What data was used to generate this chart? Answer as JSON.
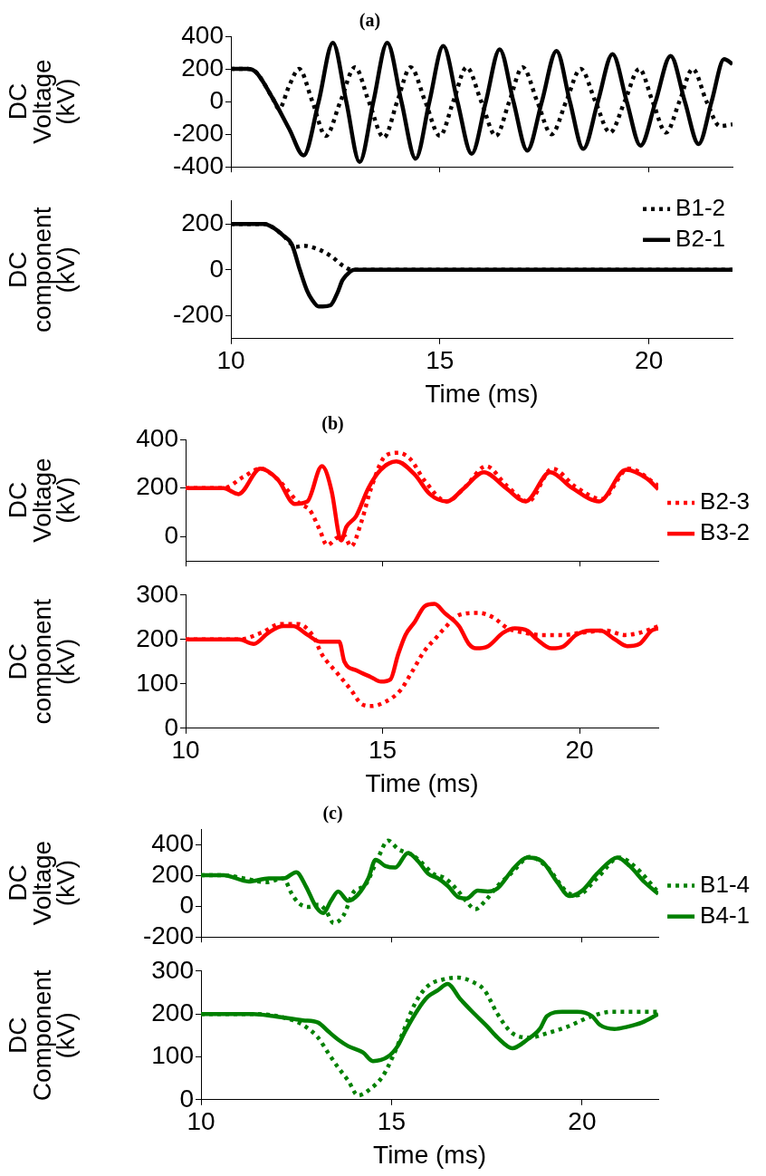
{
  "chart_data": [
    {
      "type": "line",
      "title": "(a)",
      "ylabel": "DC Voltage (kV)",
      "xlim": [
        10,
        22
      ],
      "xticks": [
        10,
        15,
        20
      ],
      "ylim": [
        -400,
        400
      ],
      "yticks": [
        -400,
        -200,
        0,
        200,
        400
      ],
      "tick_labels": "y",
      "marker": "none",
      "series": [
        {
          "color": "#000000",
          "line_style": "dotted",
          "x": [
            10,
            10.4,
            10.6,
            11,
            11.15,
            11.4,
            11.63,
            11.95,
            12.27,
            12.62,
            12.97,
            13.3,
            13.66,
            13.98,
            14.3,
            14.65,
            15.0,
            15.32,
            15.64,
            15.99,
            16.34,
            16.66,
            16.98,
            17.33,
            17.67,
            18.02,
            18.37,
            18.72,
            19.07,
            19.42,
            19.77,
            20.09,
            20.41,
            20.73,
            21.05,
            21.38,
            21.7,
            22
          ],
          "values": [
            200,
            200,
            180,
            20,
            -45,
            100,
            200,
            0,
            -210,
            0,
            210,
            0,
            -220,
            0,
            210,
            0,
            -210,
            0,
            210,
            0,
            -210,
            0,
            210,
            0,
            -200,
            0,
            200,
            0,
            -190,
            0,
            200,
            0,
            -190,
            0,
            200,
            0,
            -150,
            -140
          ]
        },
        {
          "color": "#000000",
          "line_style": "solid",
          "x": [
            10,
            10.4,
            10.6,
            11,
            11.4,
            11.74,
            12.1,
            12.44,
            12.76,
            13.08,
            13.41,
            13.74,
            14.08,
            14.42,
            14.75,
            15.08,
            15.42,
            15.76,
            16.1,
            16.43,
            16.76,
            17.09,
            17.44,
            17.79,
            18.11,
            18.43,
            18.78,
            19.13,
            19.47,
            19.8,
            20.16,
            20.52,
            20.86,
            21.19,
            21.5,
            21.8,
            22
          ],
          "values": [
            200,
            200,
            180,
            20,
            -170,
            -330,
            0,
            360,
            0,
            -370,
            0,
            360,
            0,
            -350,
            0,
            340,
            0,
            -320,
            0,
            320,
            0,
            -300,
            0,
            310,
            0,
            -290,
            0,
            290,
            0,
            -270,
            0,
            280,
            0,
            -260,
            0,
            260,
            230
          ]
        }
      ]
    },
    {
      "type": "line",
      "xlabel": "Time (ms)",
      "ylabel": "DC component (kV)",
      "xlim": [
        10,
        22
      ],
      "xticks": [
        10,
        15,
        20
      ],
      "ylim": [
        -300,
        300
      ],
      "yticks": [
        -200,
        0,
        200
      ],
      "legend": "top right",
      "marker": "none",
      "series": [
        {
          "name": "B1-2",
          "color": "#000000",
          "line_style": "dotted",
          "x": [
            10,
            10.8,
            11.0,
            11.25,
            11.46,
            11.55,
            11.73,
            12.08,
            12.43,
            12.66,
            12.9,
            14,
            16,
            18,
            20,
            22
          ],
          "values": [
            200,
            200,
            185,
            150,
            110,
            100,
            105,
            90,
            55,
            20,
            0,
            0,
            0,
            0,
            0,
            0
          ]
        },
        {
          "name": "B2-1",
          "color": "#000000",
          "line_style": "solid",
          "x": [
            10,
            10.8,
            11.0,
            11.25,
            11.46,
            11.65,
            11.82,
            11.94,
            12.1,
            12.2,
            12.38,
            12.55,
            12.67,
            12.84,
            12.95,
            13.5,
            14,
            15,
            16,
            17,
            18,
            19,
            20,
            21,
            22
          ],
          "values": [
            200,
            200,
            185,
            150,
            110,
            0,
            -90,
            -130,
            -160,
            -160,
            -155,
            -100,
            -45,
            -10,
            0,
            0,
            0,
            0,
            0,
            0,
            0,
            0,
            0,
            0,
            0
          ]
        }
      ]
    },
    {
      "type": "line",
      "title": "(b)",
      "ylabel": "DC Voltage (kV)",
      "xlim": [
        10,
        22
      ],
      "xticks": [
        10,
        15,
        20
      ],
      "ylim": [
        -100,
        400
      ],
      "yticks": [
        0,
        200,
        400
      ],
      "tick_labels": "y",
      "legend": "right",
      "marker": "none",
      "series": [
        {
          "name": "B2-3",
          "color": "#ff0000",
          "line_style": "dotted",
          "x": [
            10,
            10.96,
            11.46,
            11.9,
            12.34,
            12.9,
            13.15,
            13.4,
            13.59,
            13.84,
            14.02,
            14.2,
            14.46,
            14.71,
            15.09,
            15.4,
            15.7,
            16.07,
            16.63,
            17.1,
            17.63,
            18.15,
            18.7,
            19.31,
            19.9,
            20.56,
            21.25,
            22
          ],
          "values": [
            200,
            200,
            245,
            280,
            235,
            135,
            110,
            30,
            -35,
            -5,
            5,
            -40,
            60,
            200,
            335,
            345,
            320,
            230,
            145,
            205,
            290,
            210,
            145,
            280,
            205,
            155,
            280,
            210
          ]
        },
        {
          "name": "B3-2",
          "color": "#ff0000",
          "line_style": "solid",
          "x": [
            10,
            10.96,
            11.34,
            11.9,
            12.34,
            12.77,
            13.09,
            13.46,
            13.71,
            13.9,
            13.95,
            14.08,
            14.33,
            14.64,
            14.95,
            15.35,
            15.82,
            16.2,
            16.63,
            17.07,
            17.57,
            18.13,
            18.63,
            19.25,
            19.81,
            20.5,
            21.18,
            21.7,
            22
          ],
          "values": [
            200,
            200,
            175,
            280,
            235,
            135,
            145,
            290,
            185,
            0,
            -15,
            40,
            85,
            200,
            275,
            310,
            255,
            175,
            145,
            200,
            265,
            200,
            145,
            265,
            200,
            145,
            275,
            240,
            195
          ]
        }
      ]
    },
    {
      "type": "line",
      "xlabel": "Time (ms)",
      "ylabel": "DC component (kV)",
      "xlim": [
        10,
        22
      ],
      "xticks": [
        10,
        15,
        20
      ],
      "ylim": [
        0,
        300
      ],
      "yticks": [
        0,
        100,
        200,
        300
      ],
      "marker": "none",
      "series": [
        {
          "color": "#ff0000",
          "line_style": "dotted",
          "x": [
            10,
            11.36,
            11.92,
            12.42,
            12.85,
            13.22,
            13.47,
            13.84,
            14.21,
            14.46,
            14.71,
            15.08,
            15.45,
            15.7,
            16.07,
            16.32,
            16.57,
            16.94,
            17.43,
            17.8,
            18.18,
            18.61,
            19.05,
            19.55,
            20.04,
            20.66,
            21.15,
            21.52,
            22
          ],
          "values": [
            200,
            200,
            215,
            235,
            235,
            210,
            165,
            125,
            85,
            55,
            50,
            60,
            85,
            120,
            175,
            200,
            225,
            255,
            260,
            250,
            225,
            215,
            210,
            210,
            215,
            220,
            210,
            215,
            230
          ]
        },
        {
          "color": "#ff0000",
          "line_style": "solid",
          "x": [
            10,
            11.36,
            11.73,
            12.1,
            12.48,
            12.73,
            13.1,
            13.41,
            13.9,
            14.03,
            14.34,
            14.71,
            14.96,
            15.2,
            15.39,
            15.58,
            15.82,
            16.07,
            16.32,
            16.57,
            16.94,
            17.19,
            17.37,
            17.68,
            18.06,
            18.36,
            18.67,
            18.92,
            19.29,
            19.6,
            19.91,
            20.28,
            20.53,
            20.9,
            21.21,
            21.52,
            21.83,
            22
          ],
          "values": [
            200,
            200,
            190,
            215,
            230,
            230,
            210,
            195,
            195,
            150,
            130,
            115,
            105,
            110,
            165,
            210,
            240,
            275,
            280,
            260,
            230,
            190,
            180,
            185,
            215,
            225,
            220,
            200,
            180,
            185,
            210,
            220,
            220,
            200,
            185,
            190,
            220,
            225
          ]
        }
      ]
    },
    {
      "type": "line",
      "title": "(c)",
      "ylabel": "DC Voltage (kV)",
      "xlim": [
        10,
        22
      ],
      "xticks": [
        10,
        15,
        20
      ],
      "ylim": [
        -200,
        500
      ],
      "yticks": [
        -200,
        0,
        200,
        400
      ],
      "tick_labels": "y",
      "legend": "right",
      "marker": "none",
      "series": [
        {
          "name": "B1-4",
          "color": "#008000",
          "line_style": "dotted",
          "x": [
            10,
            10.6,
            11.12,
            11.71,
            12.17,
            12.36,
            12.56,
            12.82,
            13.08,
            13.28,
            13.48,
            13.74,
            14,
            14.32,
            14.65,
            14.91,
            15.17,
            15.56,
            15.82,
            16.09,
            16.41,
            16.74,
            17,
            17.2,
            17.46,
            17.78,
            18.17,
            18.63,
            19.09,
            19.61,
            19.87,
            20.39,
            20.98,
            21.37,
            22
          ],
          "values": [
            200,
            200,
            180,
            155,
            180,
            90,
            20,
            -5,
            10,
            -30,
            -110,
            -60,
            90,
            140,
            315,
            425,
            370,
            330,
            275,
            210,
            180,
            100,
            20,
            -20,
            35,
            130,
            220,
            320,
            250,
            90,
            70,
            180,
            315,
            260,
            90
          ]
        },
        {
          "name": "B4-1",
          "color": "#008000",
          "line_style": "solid",
          "x": [
            10,
            10.6,
            11.25,
            11.78,
            12.17,
            12.5,
            12.75,
            13.02,
            13.21,
            13.41,
            13.6,
            13.86,
            14.12,
            14.39,
            14.58,
            14.84,
            15.1,
            15.43,
            15.7,
            15.96,
            16.22,
            16.48,
            16.74,
            16.97,
            17.26,
            17.52,
            17.78,
            18.17,
            18.43,
            18.56,
            18.95,
            19.35,
            19.67,
            20,
            20.39,
            20.78,
            20.92,
            21.25,
            21.64,
            22
          ],
          "values": [
            200,
            200,
            160,
            180,
            180,
            220,
            130,
            -5,
            -45,
            35,
            95,
            35,
            75,
            180,
            300,
            260,
            250,
            345,
            290,
            210,
            180,
            130,
            60,
            50,
            100,
            95,
            115,
            235,
            300,
            315,
            290,
            155,
            65,
            100,
            210,
            300,
            315,
            260,
            155,
            80
          ]
        }
      ]
    },
    {
      "type": "line",
      "xlabel": "Time (ms)",
      "ylabel": "DC Component (kV)",
      "xlim": [
        10,
        22
      ],
      "xticks": [
        10,
        15,
        20
      ],
      "ylim": [
        0,
        300
      ],
      "yticks": [
        0,
        100,
        200,
        300
      ],
      "marker": "none",
      "series": [
        {
          "color": "#008000",
          "line_style": "dotted",
          "x": [
            10,
            11.37,
            12.42,
            12.75,
            13.07,
            13.33,
            13.6,
            13.86,
            14.12,
            14.44,
            14.77,
            15.03,
            15.29,
            15.62,
            15.95,
            16.34,
            16.73,
            17.12,
            17.44,
            17.78,
            18.17,
            18.63,
            19.08,
            19.61,
            20.26,
            20.78,
            21.44,
            22
          ],
          "values": [
            200,
            200,
            185,
            170,
            145,
            110,
            75,
            45,
            10,
            25,
            55,
            100,
            155,
            225,
            265,
            280,
            285,
            275,
            255,
            200,
            155,
            145,
            155,
            170,
            195,
            205,
            205,
            205
          ]
        },
        {
          "color": "#008000",
          "line_style": "solid",
          "x": [
            10,
            11.37,
            11.9,
            12.68,
            13.07,
            13.33,
            13.6,
            13.86,
            14.25,
            14.51,
            14.9,
            15.16,
            15.36,
            15.69,
            15.95,
            16.21,
            16.47,
            16.8,
            17.12,
            17.52,
            17.78,
            18.17,
            18.56,
            18.89,
            19.08,
            19.48,
            19.87,
            20.26,
            20.46,
            20.85,
            21.18,
            21.57,
            22
          ],
          "values": [
            200,
            200,
            195,
            185,
            180,
            160,
            140,
            125,
            110,
            90,
            100,
            125,
            160,
            210,
            240,
            255,
            270,
            235,
            205,
            170,
            145,
            120,
            140,
            165,
            195,
            205,
            205,
            195,
            175,
            165,
            170,
            180,
            200
          ]
        }
      ]
    }
  ]
}
